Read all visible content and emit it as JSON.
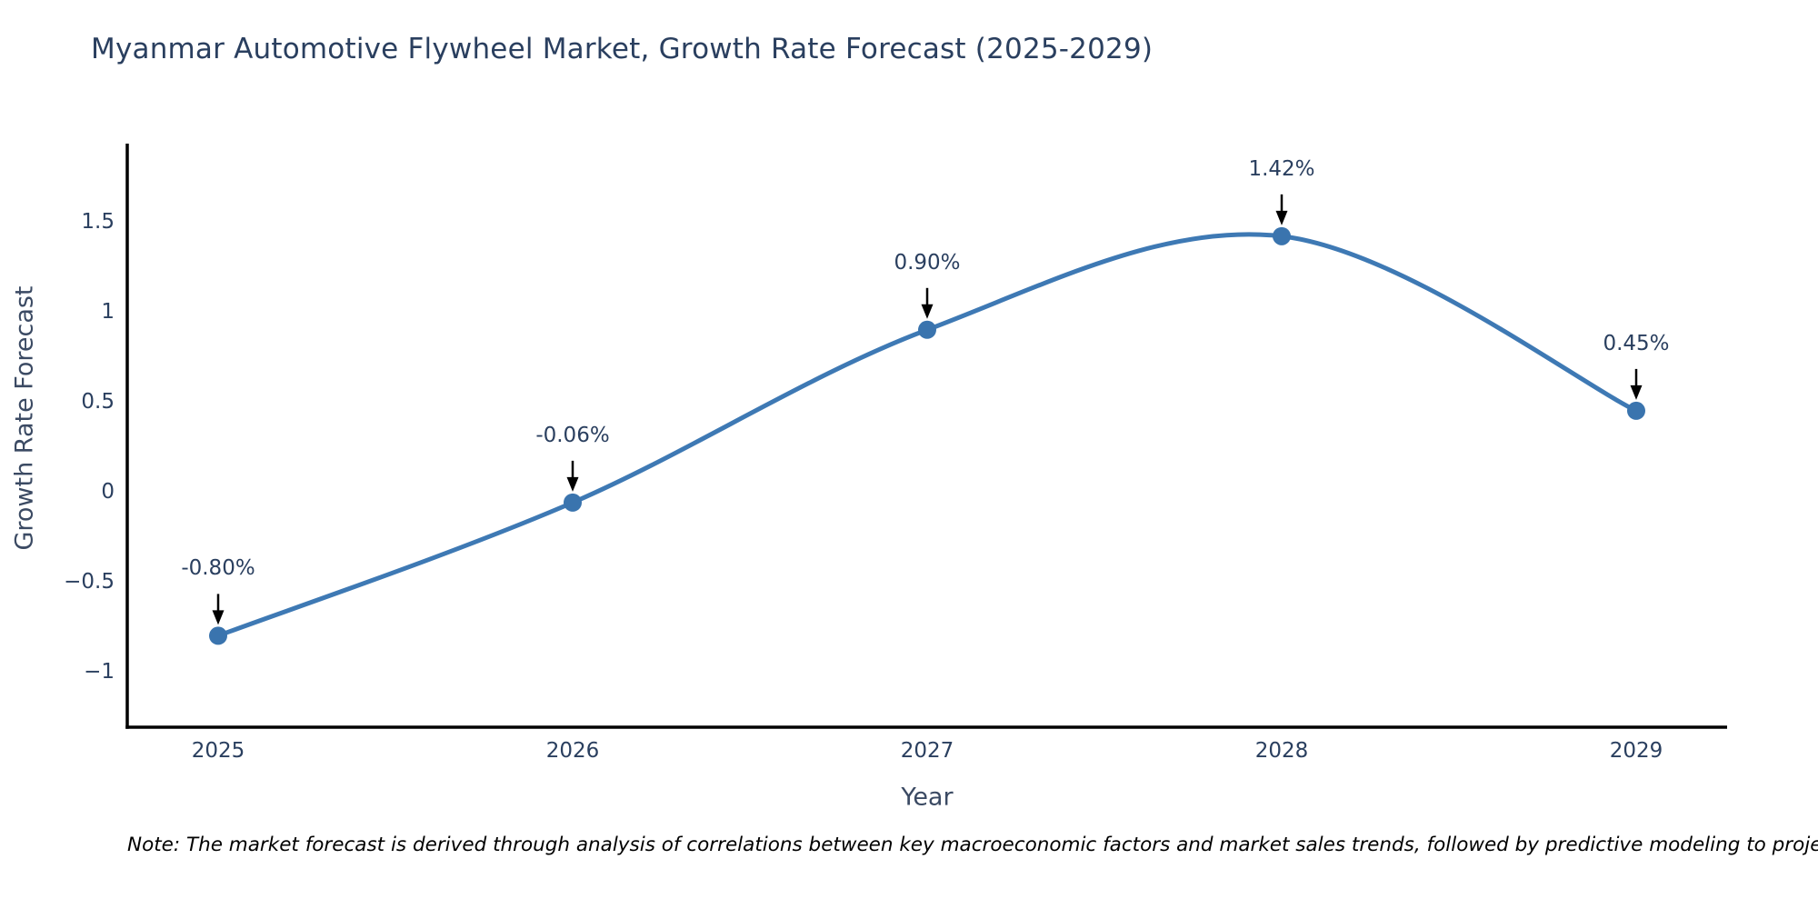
{
  "footnote": "Note: The market forecast is derived through analysis of correlations between key macroeconomic factors and market sales trends, followed by predictive modeling to project future sa",
  "chart_data": {
    "type": "line",
    "title": "Myanmar Automotive Flywheel Market, Growth Rate Forecast (2025-2029)",
    "xlabel": "Year",
    "ylabel": "Growth Rate Forecast",
    "categories": [
      "2025",
      "2026",
      "2027",
      "2028",
      "2029"
    ],
    "series": [
      {
        "name": "Growth Rate Forecast (%)",
        "values": [
          -0.8,
          -0.06,
          0.9,
          1.42,
          0.45
        ],
        "point_labels": [
          "-0.80%",
          "-0.06%",
          "0.90%",
          "1.42%",
          "0.45%"
        ]
      }
    ],
    "yticks": {
      "values": [
        1.5,
        1.0,
        0.5,
        0.0,
        -0.5,
        -1.0
      ],
      "labels": [
        "1.5",
        "1",
        "0.5",
        "0",
        "−0.5",
        "−1"
      ]
    },
    "ylim": [
      -1.31,
      1.92
    ],
    "line_shape": "spline",
    "grid": false,
    "legend": "none",
    "colors": {
      "line": "#3e79b4",
      "marker": "#3a74ae",
      "arrow": "#000000",
      "axis": "#000000",
      "title_text": "#2a3f5f",
      "tick_text": "#2a3f5f",
      "note_text": "#000000",
      "background": "#ffffff"
    }
  }
}
